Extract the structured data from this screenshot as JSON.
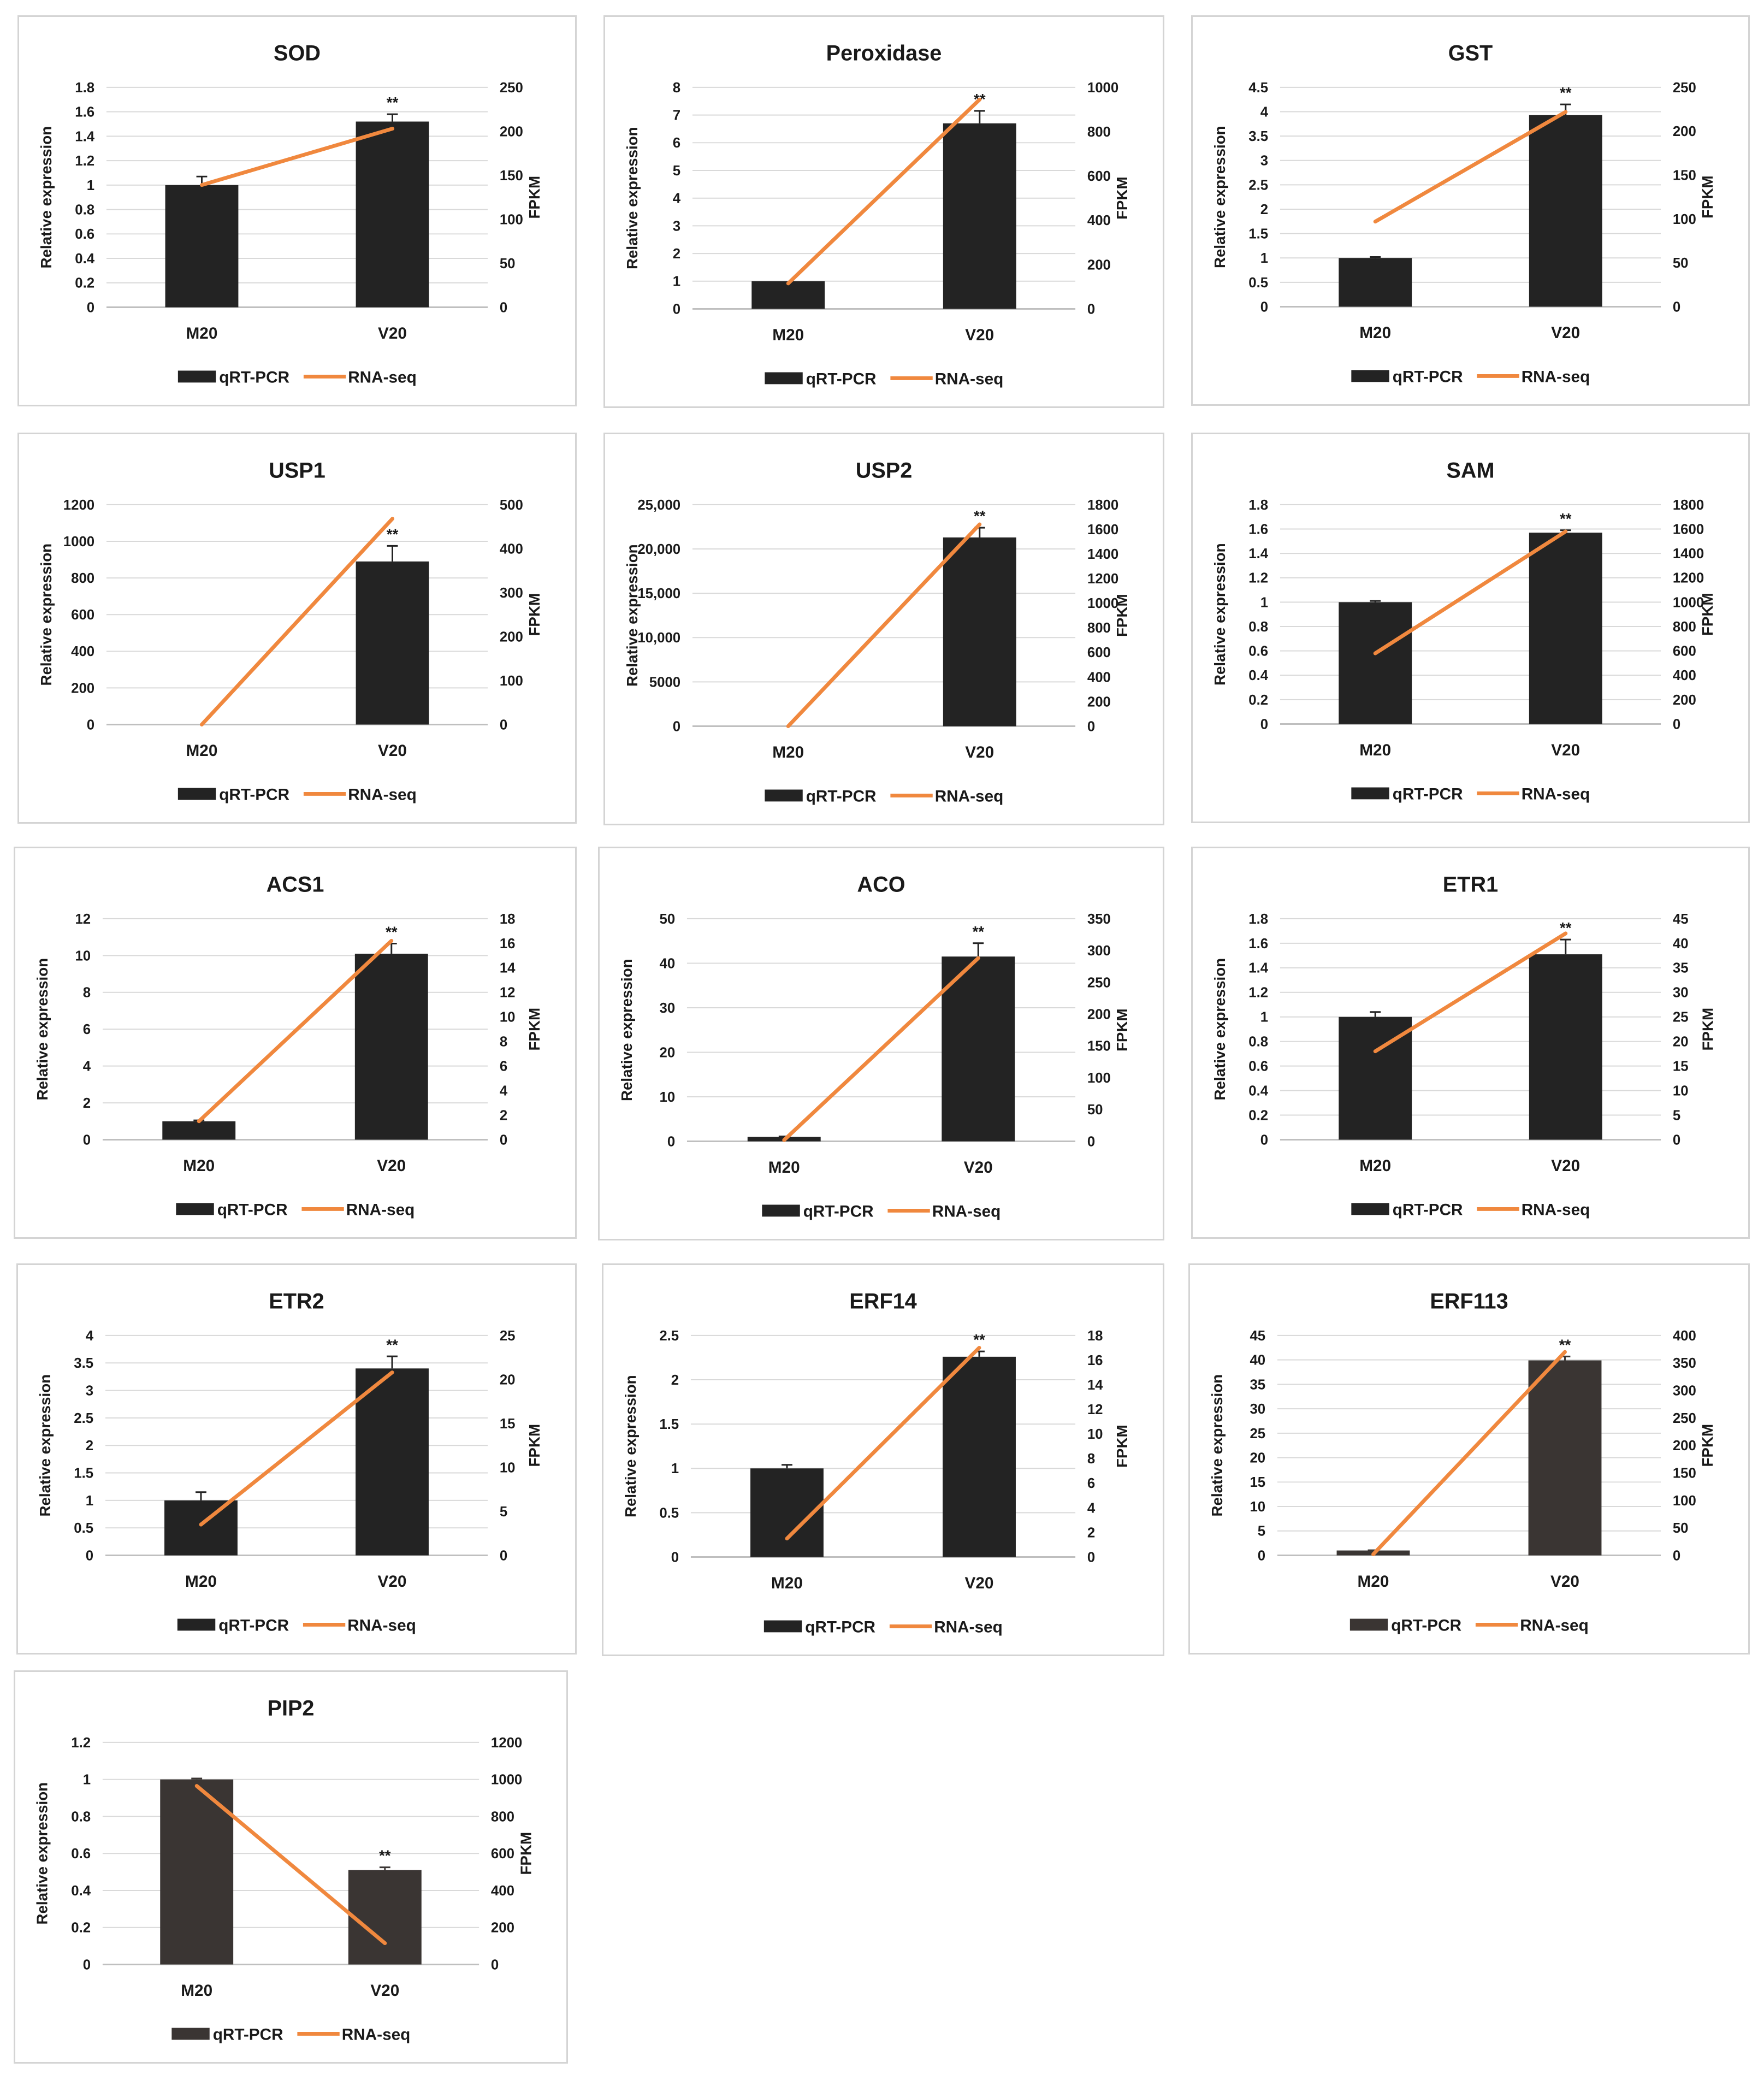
{
  "legend": {
    "bar_label": "qRT-PCR",
    "line_label": "RNA-seq"
  },
  "axis": {
    "y_left_label": "Relative expression",
    "y_right_label": "FPKM"
  },
  "significance_mark": "**",
  "colors": {
    "bar": "#232323",
    "bar_alt": "#3a3533",
    "line": "#f0883e",
    "grid": "#d9d9d9",
    "axis": "#bfbfbf",
    "text": "#1a1a1a"
  },
  "chart_data": [
    {
      "type": "bar",
      "title": "SOD",
      "categories": [
        "M20",
        "V20"
      ],
      "y_ticks": [
        "0",
        "0.2",
        "0.4",
        "0.6",
        "0.8",
        "1",
        "1.2",
        "1.4",
        "1.6",
        "1.8"
      ],
      "ylim": [
        0,
        1.8
      ],
      "y2_ticks": [
        "0",
        "50",
        "100",
        "150",
        "200",
        "250"
      ],
      "y2lim": [
        0,
        250
      ],
      "series": [
        {
          "name": "qRT-PCR",
          "values": [
            1.0,
            1.52
          ],
          "errors": [
            0.07,
            0.06
          ]
        },
        {
          "name": "RNA-seq",
          "values": [
            139,
            203
          ]
        }
      ],
      "significance": [
        false,
        true
      ],
      "xlabel": "",
      "ylabel": "Relative expression",
      "y2label": "FPKM"
    },
    {
      "type": "bar",
      "title": "Peroxidase",
      "categories": [
        "M20",
        "V20"
      ],
      "y_ticks": [
        "0",
        "1",
        "2",
        "3",
        "4",
        "5",
        "6",
        "7",
        "8"
      ],
      "ylim": [
        0,
        8
      ],
      "y2_ticks": [
        "0",
        "200",
        "400",
        "600",
        "800",
        "1000"
      ],
      "y2lim": [
        0,
        1000
      ],
      "series": [
        {
          "name": "qRT-PCR",
          "values": [
            1.0,
            6.7
          ],
          "errors": [
            0.0,
            0.45
          ]
        },
        {
          "name": "RNA-seq",
          "values": [
            115,
            945
          ]
        }
      ],
      "significance": [
        false,
        true
      ],
      "xlabel": "",
      "ylabel": "Relative expression",
      "y2label": "FPKM"
    },
    {
      "type": "bar",
      "title": "GST",
      "categories": [
        "M20",
        "V20"
      ],
      "y_ticks": [
        "0",
        "0.5",
        "1",
        "1.5",
        "2",
        "2.5",
        "3",
        "3.5",
        "4",
        "4.5"
      ],
      "ylim": [
        0,
        4.5
      ],
      "y2_ticks": [
        "0",
        "50",
        "100",
        "150",
        "200",
        "250"
      ],
      "y2lim": [
        0,
        250
      ],
      "series": [
        {
          "name": "qRT-PCR",
          "values": [
            1.0,
            3.93
          ],
          "errors": [
            0.02,
            0.22
          ]
        },
        {
          "name": "RNA-seq",
          "values": [
            97,
            222
          ]
        }
      ],
      "significance": [
        false,
        true
      ],
      "xlabel": "",
      "ylabel": "Relative expression",
      "y2label": "FPKM"
    },
    {
      "type": "bar",
      "title": "USP1",
      "categories": [
        "M20",
        "V20"
      ],
      "y_ticks": [
        "0",
        "200",
        "400",
        "600",
        "800",
        "1000",
        "1200"
      ],
      "ylim": [
        0,
        1200
      ],
      "y2_ticks": [
        "0",
        "100",
        "200",
        "300",
        "400",
        "500"
      ],
      "y2lim": [
        0,
        500
      ],
      "series": [
        {
          "name": "qRT-PCR",
          "values": [
            0,
            890
          ],
          "errors": [
            0,
            85
          ]
        },
        {
          "name": "RNA-seq",
          "values": [
            0,
            468
          ]
        }
      ],
      "significance": [
        false,
        true
      ],
      "xlabel": "",
      "ylabel": "Relative expression",
      "y2label": "FPKM"
    },
    {
      "type": "bar",
      "title": "USP2",
      "categories": [
        "M20",
        "V20"
      ],
      "y_ticks": [
        "0",
        "5000",
        "10,000",
        "15,000",
        "20,000",
        "25,000"
      ],
      "ylim": [
        0,
        25000
      ],
      "y2_ticks": [
        "0",
        "200",
        "400",
        "600",
        "800",
        "1000",
        "1200",
        "1400",
        "1600",
        "1800"
      ],
      "y2lim": [
        0,
        1800
      ],
      "series": [
        {
          "name": "qRT-PCR",
          "values": [
            0,
            21300
          ],
          "errors": [
            0,
            1100
          ]
        },
        {
          "name": "RNA-seq",
          "values": [
            0,
            1640
          ]
        }
      ],
      "significance": [
        false,
        true
      ],
      "xlabel": "",
      "ylabel": "Relative expression",
      "y2label": "FPKM"
    },
    {
      "type": "bar",
      "title": "SAM",
      "categories": [
        "M20",
        "V20"
      ],
      "y_ticks": [
        "0",
        "0.2",
        "0.4",
        "0.6",
        "0.8",
        "1",
        "1.2",
        "1.4",
        "1.6",
        "1.8"
      ],
      "ylim": [
        0,
        1.8
      ],
      "y2_ticks": [
        "0",
        "200",
        "400",
        "600",
        "800",
        "1000",
        "1200",
        "1400",
        "1600",
        "1800"
      ],
      "y2lim": [
        0,
        1800
      ],
      "series": [
        {
          "name": "qRT-PCR",
          "values": [
            1.0,
            1.57
          ],
          "errors": [
            0.01,
            0.02
          ]
        },
        {
          "name": "RNA-seq",
          "values": [
            580,
            1580
          ]
        }
      ],
      "significance": [
        false,
        true
      ],
      "xlabel": "",
      "ylabel": "Relative expression",
      "y2label": "FPKM"
    },
    {
      "type": "bar",
      "title": "ACS1",
      "categories": [
        "M20",
        "V20"
      ],
      "y_ticks": [
        "0",
        "2",
        "4",
        "6",
        "8",
        "10",
        "12"
      ],
      "ylim": [
        0,
        12
      ],
      "y2_ticks": [
        "0",
        "2",
        "4",
        "6",
        "8",
        "10",
        "12",
        "14",
        "16",
        "18"
      ],
      "y2lim": [
        0,
        18
      ],
      "series": [
        {
          "name": "qRT-PCR",
          "values": [
            1.0,
            10.1
          ],
          "errors": [
            0.05,
            0.55
          ]
        },
        {
          "name": "RNA-seq",
          "values": [
            1.5,
            16.2
          ]
        }
      ],
      "significance": [
        false,
        true
      ],
      "xlabel": "",
      "ylabel": "Relative expression",
      "y2label": "FPKM"
    },
    {
      "type": "bar",
      "title": "ACO",
      "categories": [
        "M20",
        "V20"
      ],
      "y_ticks": [
        "0",
        "10",
        "20",
        "30",
        "40",
        "50"
      ],
      "ylim": [
        0,
        50
      ],
      "y2_ticks": [
        "0",
        "50",
        "100",
        "150",
        "200",
        "250",
        "300",
        "350"
      ],
      "y2lim": [
        0,
        350
      ],
      "series": [
        {
          "name": "qRT-PCR",
          "values": [
            1.0,
            41.5
          ],
          "errors": [
            0.1,
            3.0
          ]
        },
        {
          "name": "RNA-seq",
          "values": [
            2,
            288
          ]
        }
      ],
      "significance": [
        false,
        true
      ],
      "xlabel": "",
      "ylabel": "Relative expression",
      "y2label": "FPKM"
    },
    {
      "type": "bar",
      "title": "ETR1",
      "categories": [
        "M20",
        "V20"
      ],
      "y_ticks": [
        "0",
        "0.2",
        "0.4",
        "0.6",
        "0.8",
        "1",
        "1.2",
        "1.4",
        "1.6",
        "1.8"
      ],
      "ylim": [
        0,
        1.8
      ],
      "y2_ticks": [
        "0",
        "5",
        "10",
        "15",
        "20",
        "25",
        "30",
        "35",
        "40",
        "45"
      ],
      "y2lim": [
        0,
        45
      ],
      "series": [
        {
          "name": "qRT-PCR",
          "values": [
            1.0,
            1.51
          ],
          "errors": [
            0.04,
            0.12
          ]
        },
        {
          "name": "RNA-seq",
          "values": [
            18,
            42
          ]
        }
      ],
      "significance": [
        false,
        true
      ],
      "xlabel": "",
      "ylabel": "Relative expression",
      "y2label": "FPKM"
    },
    {
      "type": "bar",
      "title": "ETR2",
      "categories": [
        "M20",
        "V20"
      ],
      "y_ticks": [
        "0",
        "0.5",
        "1",
        "1.5",
        "2",
        "2.5",
        "3",
        "3.5",
        "4"
      ],
      "ylim": [
        0,
        4
      ],
      "y2_ticks": [
        "0",
        "5",
        "10",
        "15",
        "20",
        "25"
      ],
      "y2lim": [
        0,
        25
      ],
      "series": [
        {
          "name": "qRT-PCR",
          "values": [
            1.0,
            3.4
          ],
          "errors": [
            0.15,
            0.22
          ]
        },
        {
          "name": "RNA-seq",
          "values": [
            3.5,
            20.8
          ]
        }
      ],
      "significance": [
        false,
        true
      ],
      "xlabel": "",
      "ylabel": "Relative expression",
      "y2label": "FPKM"
    },
    {
      "type": "bar",
      "title": "ERF14",
      "categories": [
        "M20",
        "V20"
      ],
      "y_ticks": [
        "0",
        "0.5",
        "1",
        "1.5",
        "2",
        "2.5"
      ],
      "ylim": [
        0,
        2.5
      ],
      "y2_ticks": [
        "0",
        "2",
        "4",
        "6",
        "8",
        "10",
        "12",
        "14",
        "16",
        "18"
      ],
      "y2lim": [
        0,
        18
      ],
      "series": [
        {
          "name": "qRT-PCR",
          "values": [
            1.0,
            2.26
          ],
          "errors": [
            0.04,
            0.06
          ]
        },
        {
          "name": "RNA-seq",
          "values": [
            1.5,
            17.0
          ]
        }
      ],
      "significance": [
        false,
        true
      ],
      "xlabel": "",
      "ylabel": "Relative expression",
      "y2label": "FPKM"
    },
    {
      "type": "bar",
      "title": "ERF113",
      "categories": [
        "M20",
        "V20"
      ],
      "y_ticks": [
        "0",
        "5",
        "10",
        "15",
        "20",
        "25",
        "30",
        "35",
        "40",
        "45"
      ],
      "ylim": [
        0,
        45
      ],
      "y2_ticks": [
        "0",
        "50",
        "100",
        "150",
        "200",
        "250",
        "300",
        "350",
        "400"
      ],
      "y2lim": [
        0,
        400
      ],
      "series": [
        {
          "name": "qRT-PCR",
          "values": [
            1.0,
            39.9
          ],
          "errors": [
            0.05,
            0.8
          ]
        },
        {
          "name": "RNA-seq",
          "values": [
            2,
            370
          ]
        }
      ],
      "significance": [
        false,
        true
      ],
      "xlabel": "",
      "ylabel": "Relative expression",
      "y2label": "FPKM"
    },
    {
      "type": "bar",
      "title": "PIP2",
      "categories": [
        "M20",
        "V20"
      ],
      "y_ticks": [
        "0",
        "0.2",
        "0.4",
        "0.6",
        "0.8",
        "1",
        "1.2"
      ],
      "ylim": [
        0,
        1.2
      ],
      "y2_ticks": [
        "0",
        "200",
        "400",
        "600",
        "800",
        "1000",
        "1200"
      ],
      "y2lim": [
        0,
        1200
      ],
      "series": [
        {
          "name": "qRT-PCR",
          "values": [
            1.0,
            0.51
          ],
          "errors": [
            0.005,
            0.015
          ]
        },
        {
          "name": "RNA-seq",
          "values": [
            965,
            115
          ]
        }
      ],
      "significance": [
        false,
        true
      ],
      "xlabel": "",
      "ylabel": "Relative expression",
      "y2label": "FPKM"
    }
  ]
}
